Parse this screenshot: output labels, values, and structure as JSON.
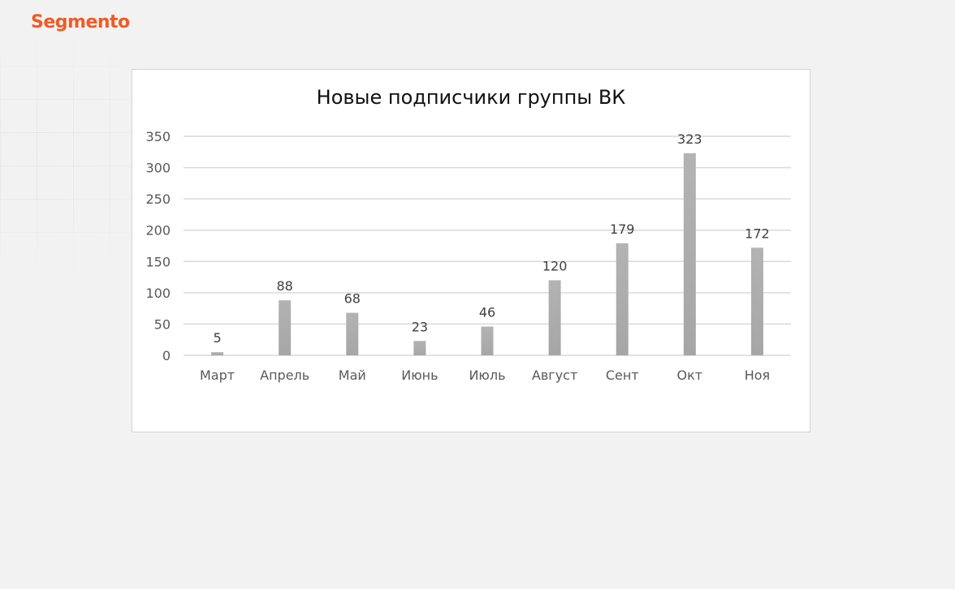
{
  "brand": {
    "logo_text": "Segmento",
    "color": "#f15a24"
  },
  "chart_data": {
    "type": "bar",
    "title": "Новые подписчики группы ВК",
    "xlabel": "",
    "ylabel": "",
    "categories": [
      "Март",
      "Апрель",
      "Май",
      "Июнь",
      "Июль",
      "Август",
      "Сент",
      "Окт",
      "Ноя"
    ],
    "values": [
      5,
      88,
      68,
      23,
      46,
      120,
      179,
      323,
      172
    ],
    "ylim": [
      0,
      350
    ],
    "yticks": [
      0,
      50,
      100,
      150,
      200,
      250,
      300,
      350
    ],
    "grid": true,
    "legend": "none",
    "data_labels": true,
    "bar_color": "#a6a6a6"
  }
}
